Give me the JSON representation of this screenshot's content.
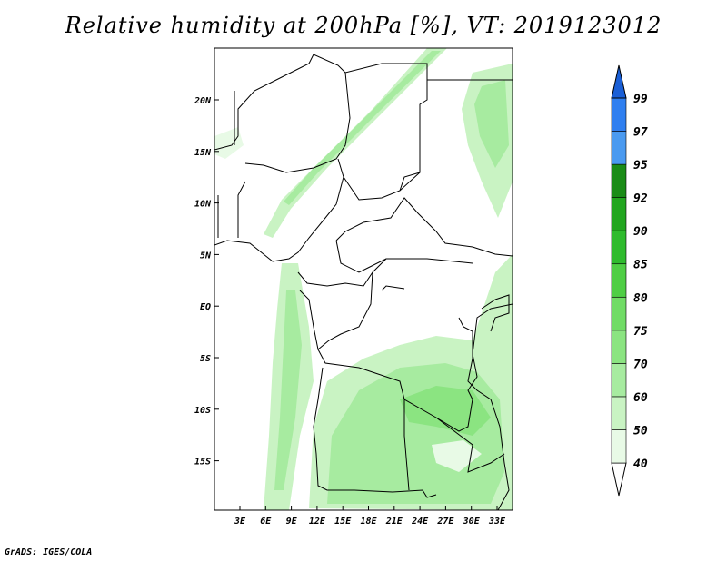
{
  "title": "Relative humidity at 200hPa [%], VT: 2019123012",
  "credit": "GrADS: IGES/COLA",
  "map": {
    "lon_ticks": [
      "3E",
      "6E",
      "9E",
      "12E",
      "15E",
      "18E",
      "21E",
      "24E",
      "27E",
      "30E",
      "33E"
    ],
    "lat_ticks": [
      "20N",
      "15N",
      "10N",
      "5N",
      "EQ",
      "5S",
      "10S",
      "15S"
    ]
  },
  "legend": {
    "labels": [
      "40",
      "50",
      "60",
      "70",
      "75",
      "80",
      "85",
      "90",
      "92",
      "95",
      "97",
      "99"
    ],
    "colors": [
      "#ffffff",
      "#e8fae6",
      "#c9f3c3",
      "#a7eba0",
      "#8be481",
      "#71dc66",
      "#4fce45",
      "#2fbb2e",
      "#22a61f",
      "#1a8c17",
      "#4a9af0",
      "#2f7ff0",
      "#1a5fd6"
    ]
  }
}
